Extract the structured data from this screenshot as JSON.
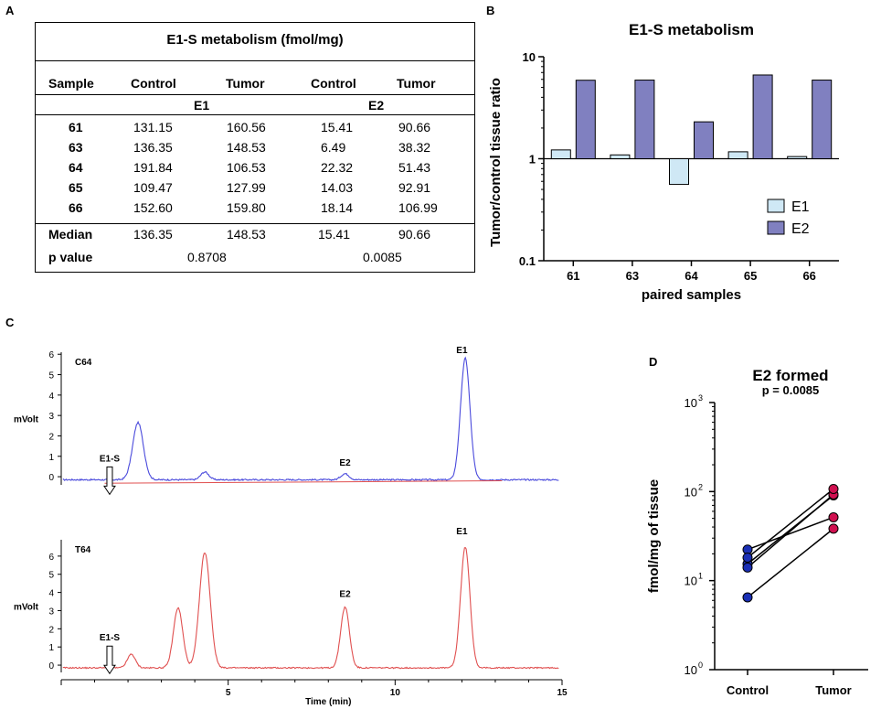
{
  "panels": {
    "a": "A",
    "b": "B",
    "c": "C",
    "d": "D"
  },
  "table": {
    "title": "E1-S metabolism (fmol/mg)",
    "headers": [
      "Sample",
      "Control",
      "Tumor",
      "Control",
      "Tumor"
    ],
    "groups": [
      "E1",
      "E2"
    ],
    "rows": [
      {
        "sample": "61",
        "e1_control": "131.15",
        "e1_tumor": "160.56",
        "e2_control": "15.41",
        "e2_tumor": "90.66"
      },
      {
        "sample": "63",
        "e1_control": "136.35",
        "e1_tumor": "148.53",
        "e2_control": "6.49",
        "e2_tumor": "38.32"
      },
      {
        "sample": "64",
        "e1_control": "191.84",
        "e1_tumor": "106.53",
        "e2_control": "22.32",
        "e2_tumor": "51.43"
      },
      {
        "sample": "65",
        "e1_control": "109.47",
        "e1_tumor": "127.99",
        "e2_control": "14.03",
        "e2_tumor": "92.91"
      },
      {
        "sample": "66",
        "e1_control": "152.60",
        "e1_tumor": "159.80",
        "e2_control": "18.14",
        "e2_tumor": "106.99"
      }
    ],
    "median": {
      "label": "Median",
      "e1_control": "136.35",
      "e1_tumor": "148.53",
      "e2_control": "15.41",
      "e2_tumor": "90.66"
    },
    "pvalue": {
      "label": "p value",
      "e1": "0.8708",
      "e2": "0.0085"
    }
  },
  "chart_data": [
    {
      "id": "B",
      "type": "bar",
      "title": "E1-S metabolism",
      "xlabel": "paired samples",
      "ylabel": "Tumor/control tissue ratio",
      "yscale": "log",
      "ylim": [
        0.1,
        10
      ],
      "yticks": [
        "0.1",
        "1",
        "10"
      ],
      "categories": [
        "61",
        "63",
        "64",
        "65",
        "66"
      ],
      "baseline": 1,
      "series": [
        {
          "name": "E1",
          "color": "#cfe8f5",
          "values": [
            1.22,
            1.09,
            0.56,
            1.17,
            1.05
          ]
        },
        {
          "name": "E2",
          "color": "#8080c0",
          "values": [
            5.88,
            5.9,
            2.3,
            6.62,
            5.9
          ]
        }
      ],
      "legend_position": "bottom-right"
    },
    {
      "id": "C-top",
      "type": "line",
      "label": "C64",
      "ylabel": "mVolt",
      "yticks": [
        0,
        1,
        2,
        3,
        4,
        5,
        6
      ],
      "ylim": [
        -0.4,
        6.1
      ],
      "xlim": [
        0,
        15
      ],
      "color": "#4a4adc",
      "baseline_color": "#e05050",
      "peaks": [
        {
          "x": 2.3,
          "height": 2.8,
          "width": 0.16
        },
        {
          "x": 4.3,
          "height": 0.38,
          "width": 0.12
        },
        {
          "x": 8.5,
          "height": 0.3,
          "width": 0.12
        },
        {
          "x": 12.1,
          "height": 5.95,
          "width": 0.14
        }
      ],
      "annotations": [
        {
          "text": "E1-S",
          "x": 1.45,
          "y": 0.75
        },
        {
          "text": "E2",
          "x": 8.5,
          "y": 0.55
        },
        {
          "text": "E1",
          "x": 12.0,
          "y": 6.05
        }
      ],
      "arrow_x": 1.45
    },
    {
      "id": "C-bottom",
      "type": "line",
      "label": "T64",
      "ylabel": "mVolt",
      "yticks": [
        0,
        1,
        2,
        3,
        4,
        5,
        6
      ],
      "ylim": [
        -0.4,
        6.9
      ],
      "xlim": [
        0,
        15
      ],
      "xlabel": "Time (min)",
      "xticks": [
        "5",
        "10",
        "15"
      ],
      "color": "#e05050",
      "peaks": [
        {
          "x": 2.1,
          "height": 0.75,
          "width": 0.12
        },
        {
          "x": 3.5,
          "height": 3.3,
          "width": 0.14
        },
        {
          "x": 4.3,
          "height": 6.35,
          "width": 0.16
        },
        {
          "x": 8.5,
          "height": 3.35,
          "width": 0.13
        },
        {
          "x": 12.1,
          "height": 6.65,
          "width": 0.14
        }
      ],
      "annotations": [
        {
          "text": "E1-S",
          "x": 1.45,
          "y": 1.35
        },
        {
          "text": "E2",
          "x": 8.5,
          "y": 3.75
        },
        {
          "text": "E1",
          "x": 12.0,
          "y": 7.2
        }
      ],
      "arrow_x": 1.45
    },
    {
      "id": "D",
      "type": "scatter",
      "title": "E2 formed",
      "subtitle": "p = 0.0085",
      "ylabel": "fmol/mg of tissue",
      "yscale": "log",
      "ylim": [
        1,
        1000
      ],
      "yticks": [
        {
          "base": "10",
          "exp": "0"
        },
        {
          "base": "10",
          "exp": "1"
        },
        {
          "base": "10",
          "exp": "2"
        },
        {
          "base": "10",
          "exp": "3"
        }
      ],
      "categories": [
        "Control",
        "Tumor"
      ],
      "pairs": [
        [
          15.41,
          90.66
        ],
        [
          6.49,
          38.32
        ],
        [
          22.32,
          51.43
        ],
        [
          14.03,
          92.91
        ],
        [
          18.14,
          106.99
        ]
      ],
      "control_color": "#1a2fb5",
      "tumor_color": "#d01050"
    }
  ]
}
